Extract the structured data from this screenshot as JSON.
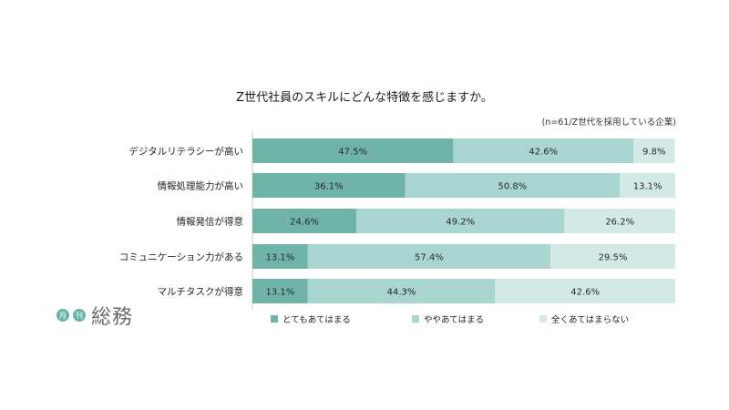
{
  "chart_data": {
    "type": "bar",
    "orientation": "horizontal",
    "stacked": true,
    "title": "Z世代社員のスキルにどんな特徴を感じますか。",
    "note": "(n=61/Z世代を採用している企業)",
    "categories": [
      "デジタルリテラシーが高い",
      "情報処理能力が高い",
      "情報発信が得意",
      "コミュニケーション力がある",
      "マルチタスクが得意"
    ],
    "series": [
      {
        "name": "とてもあてはまる",
        "values": [
          47.5,
          36.1,
          24.6,
          13.1,
          13.1
        ],
        "color": "#6fb3a9"
      },
      {
        "name": "ややあてはまる",
        "values": [
          42.6,
          50.8,
          49.2,
          57.4,
          44.3
        ],
        "color": "#a8d5cf"
      },
      {
        "name": "全くあてはまらない",
        "values": [
          9.8,
          13.1,
          26.2,
          29.5,
          42.6
        ],
        "color": "#d3e9e6"
      }
    ],
    "value_suffix": "%",
    "xlim": [
      0,
      100
    ],
    "legend_position": "bottom",
    "grid": false
  },
  "logo": {
    "small_1": "月",
    "small_2": "刊",
    "word": "総務"
  }
}
